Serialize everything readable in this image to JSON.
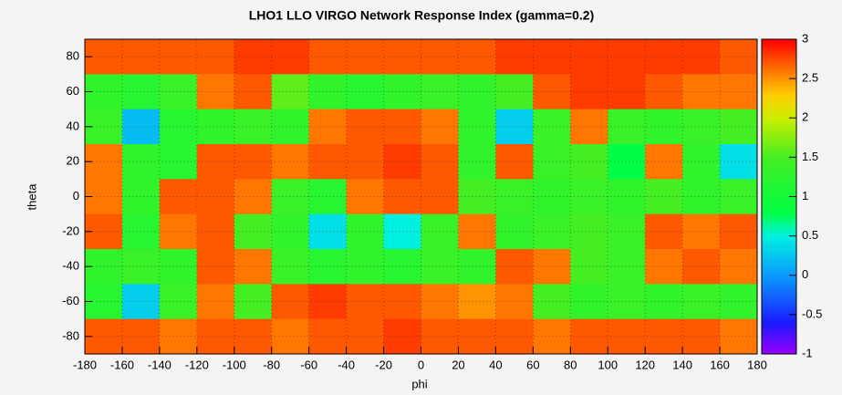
{
  "chart_data": {
    "type": "heatmap",
    "title": "LHO1 LLO VIRGO  Network Response Index (gamma=0.2)",
    "x_label": "phi",
    "y_label": "theta",
    "x": [
      -170,
      -150,
      -130,
      -110,
      -90,
      -70,
      -50,
      -30,
      -10,
      10,
      30,
      50,
      70,
      90,
      110,
      130,
      150,
      170
    ],
    "y": [
      80,
      60,
      40,
      20,
      0,
      -20,
      -40,
      -60,
      -80
    ],
    "z": [
      [
        2.7,
        2.7,
        2.7,
        2.7,
        2.8,
        2.8,
        2.7,
        2.7,
        2.7,
        2.7,
        2.7,
        2.8,
        2.8,
        2.8,
        2.8,
        2.8,
        2.8,
        2.7
      ],
      [
        1.3,
        1.2,
        1.4,
        2.6,
        2.7,
        1.6,
        1.3,
        1.2,
        1.3,
        1.4,
        1.3,
        1.5,
        2.7,
        2.8,
        2.8,
        2.7,
        2.6,
        2.6
      ],
      [
        1.4,
        0.2,
        1.2,
        1.3,
        1.4,
        1.3,
        2.6,
        2.7,
        2.7,
        2.6,
        1.3,
        0.3,
        1.4,
        2.6,
        1.4,
        1.3,
        1.4,
        1.5
      ],
      [
        2.6,
        1.3,
        1.2,
        2.7,
        2.7,
        2.6,
        2.7,
        2.7,
        2.8,
        2.7,
        1.3,
        2.7,
        1.4,
        1.5,
        0.8,
        2.6,
        1.3,
        0.4
      ],
      [
        2.6,
        1.3,
        2.7,
        2.7,
        2.6,
        1.4,
        1.2,
        2.6,
        2.7,
        2.7,
        1.5,
        1.4,
        1.3,
        1.4,
        1.3,
        1.5,
        1.3,
        1.4
      ],
      [
        2.7,
        1.2,
        2.6,
        2.7,
        1.5,
        1.3,
        0.4,
        1.3,
        0.5,
        1.4,
        2.6,
        1.3,
        1.4,
        1.5,
        1.4,
        2.7,
        2.6,
        2.7
      ],
      [
        1.3,
        1.4,
        1.3,
        2.7,
        2.6,
        1.4,
        1.2,
        1.3,
        1.2,
        1.4,
        1.3,
        2.7,
        2.6,
        1.5,
        1.4,
        2.6,
        2.7,
        2.6
      ],
      [
        1.2,
        0.3,
        1.4,
        2.6,
        1.5,
        2.7,
        2.8,
        2.7,
        2.7,
        2.6,
        2.5,
        2.6,
        1.5,
        1.3,
        1.4,
        1.3,
        1.4,
        1.3
      ],
      [
        2.7,
        2.7,
        2.6,
        2.7,
        2.7,
        2.6,
        2.7,
        2.7,
        2.8,
        2.7,
        2.7,
        2.7,
        2.6,
        2.7,
        2.7,
        2.7,
        2.7,
        2.6
      ]
    ],
    "xlim": [
      -180,
      180
    ],
    "ylim": [
      -90,
      90
    ],
    "zlim": [
      -1,
      3
    ],
    "xticks": [
      -180,
      -160,
      -140,
      -120,
      -100,
      -80,
      -60,
      -40,
      -20,
      0,
      20,
      40,
      60,
      80,
      100,
      120,
      140,
      160,
      180
    ],
    "yticks": [
      -80,
      -60,
      -40,
      -20,
      0,
      20,
      40,
      60,
      80
    ],
    "zticks": [
      -1,
      -0.5,
      0,
      0.5,
      1,
      1.5,
      2,
      2.5,
      3
    ],
    "grid": true,
    "colormap": [
      {
        "value": -1,
        "color": "#9900ff"
      },
      {
        "value": -0.6,
        "color": "#1a1aff"
      },
      {
        "value": 0,
        "color": "#0a9bff"
      },
      {
        "value": 0.5,
        "color": "#00f0e0"
      },
      {
        "value": 0.8,
        "color": "#00ff44"
      },
      {
        "value": 1.5,
        "color": "#44ee22"
      },
      {
        "value": 2,
        "color": "#ccee00"
      },
      {
        "value": 2.3,
        "color": "#ffcc00"
      },
      {
        "value": 2.6,
        "color": "#ff7700"
      },
      {
        "value": 3,
        "color": "#ff0000"
      }
    ]
  }
}
